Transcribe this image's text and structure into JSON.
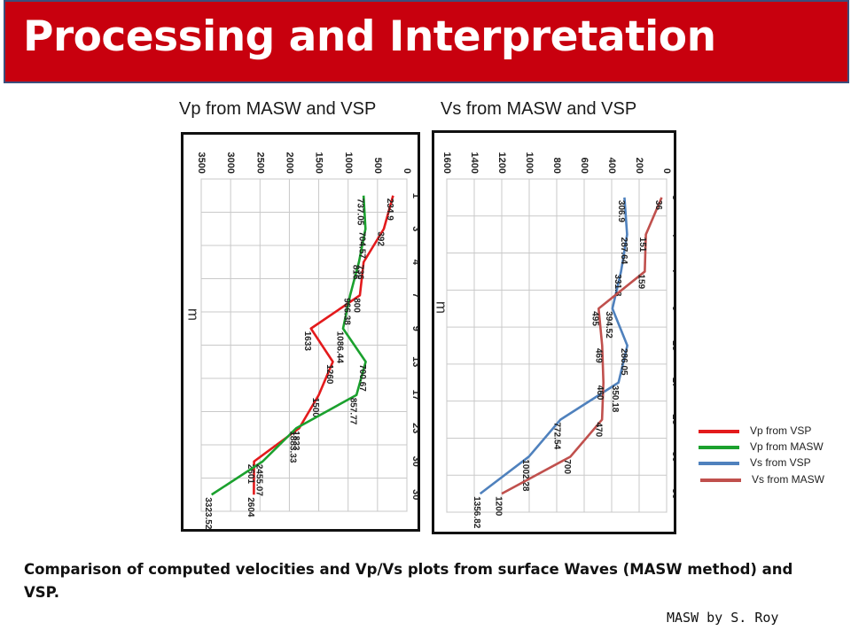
{
  "header": {
    "title": "Processing and Interpretation"
  },
  "charts": [
    {
      "heading": "Vp from MASW and VSP"
    },
    {
      "heading": "Vs from MASW and VSP"
    }
  ],
  "legend": [
    {
      "label": "Vp from VSP",
      "color": "#e31a1c"
    },
    {
      "label": "Vp from MASW",
      "color": "#1ba12e"
    },
    {
      "label": "Vs from VSP",
      "color": "#4f81bd"
    },
    {
      "label": "Vs from MASW",
      "color": "#c0504d"
    }
  ],
  "footer": {
    "caption": "Comparison of computed velocities and Vp/Vs plots  from surface  Waves (MASW method) and VSP.",
    "credit": "MASW by S. Roy"
  },
  "chart_data": [
    {
      "type": "line",
      "orientation": "rotated-90-clockwise",
      "title": "Vp from MASW and VSP",
      "xlabel": "m",
      "ylabel": "",
      "categories": [
        "1",
        "3",
        "4",
        "7",
        "9",
        "13",
        "17",
        "23",
        "30",
        "30"
      ],
      "ylim": [
        0,
        3500
      ],
      "yticks": [
        "0",
        "500",
        "1000",
        "1500",
        "2000",
        "2500",
        "3000",
        "3500"
      ],
      "grid": true,
      "series": [
        {
          "name": "Vp from VSP",
          "color": "#e31a1c",
          "values": [
            234.9,
            392,
            736,
            800,
            1633,
            1260,
            1500,
            1833,
            2601,
            2604
          ],
          "labels": [
            "234.9",
            "392",
            "736",
            "800",
            "1633",
            "1260",
            "1500",
            "1833",
            "2601",
            "2604"
          ]
        },
        {
          "name": "Vp from MASW",
          "color": "#1ba12e",
          "values": [
            737.05,
            704.57,
            816,
            966.38,
            1086.44,
            700.67,
            857.77,
            1883.33,
            2455.07,
            3323.52
          ],
          "labels": [
            "737.05",
            "704.57",
            "816",
            "966.38",
            "1086.44",
            "700.67",
            "857.77",
            "1883.33",
            "2455.07",
            "3323.52"
          ]
        }
      ]
    },
    {
      "type": "line",
      "orientation": "rotated-90-clockwise",
      "title": "Vs from MASW and VSP",
      "xlabel": "m",
      "ylabel": "",
      "categories": [
        "3",
        "4",
        "7",
        "9",
        "13",
        "17",
        "23",
        "30",
        "30"
      ],
      "ylim": [
        0,
        1600
      ],
      "yticks": [
        "0",
        "200",
        "400",
        "600",
        "800",
        "1000",
        "1200",
        "1400",
        "1600"
      ],
      "grid": true,
      "series": [
        {
          "name": "Vs from VSP",
          "color": "#4f81bd",
          "values": [
            306.9,
            287.64,
            331.8,
            394.52,
            286.05,
            350.18,
            772.54,
            1002.28,
            1356.82
          ],
          "labels": [
            "306.9",
            "287.64",
            "331.8",
            "394.52",
            "286.05",
            "350.18",
            "772.54",
            "1002.28",
            "1356.82"
          ]
        },
        {
          "name": "Vs from MASW",
          "color": "#c0504d",
          "values": [
            36,
            151,
            159,
            495,
            469,
            460,
            470,
            700,
            1200
          ],
          "labels": [
            "36",
            "151",
            "159",
            "495",
            "469",
            "460",
            "470",
            "700",
            "1200"
          ]
        }
      ]
    }
  ]
}
